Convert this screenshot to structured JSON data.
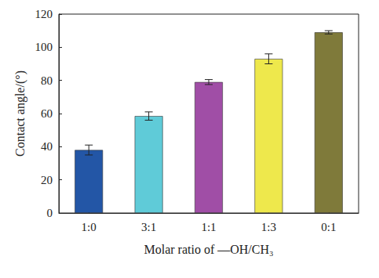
{
  "chart_data": {
    "type": "bar",
    "x_label": "Molar ratio of —OH/CH₃",
    "y_label": "Contact angle/(°)",
    "categories": [
      "1:0",
      "3:1",
      "1:1",
      "1:3",
      "0:1"
    ],
    "values": [
      38,
      58.5,
      79,
      93,
      109
    ],
    "errors": [
      3,
      2.5,
      1.5,
      3,
      1
    ],
    "colors": [
      "#2356a6",
      "#5fcbd8",
      "#a04ea6",
      "#eee84c",
      "#7f7a3a"
    ],
    "ylim": [
      0,
      120
    ],
    "yticks": [
      0,
      20,
      40,
      60,
      80,
      100,
      120
    ],
    "grid": false
  }
}
